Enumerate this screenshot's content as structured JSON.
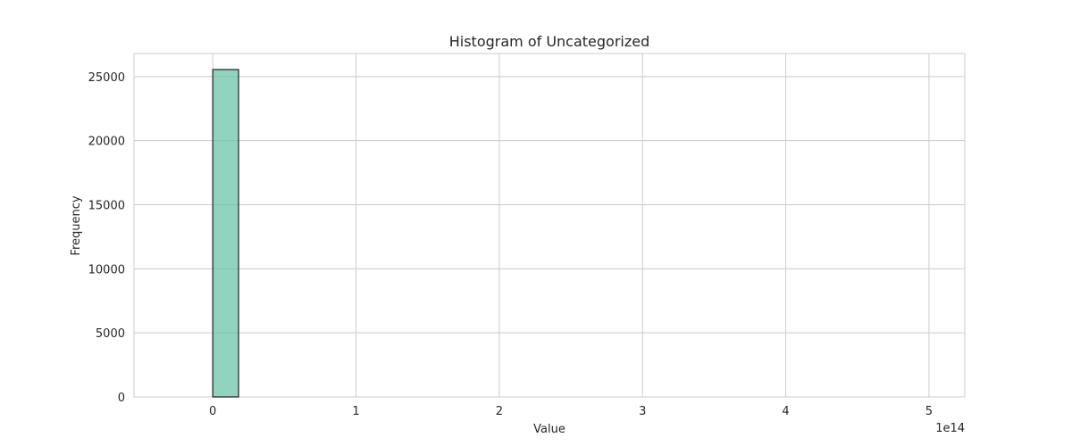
{
  "chart_data": {
    "type": "bar",
    "title": "Histogram of Uncategorized",
    "xlabel": "Value",
    "ylabel": "Frequency",
    "x_scale_label": "1e14",
    "xlim": [
      -0.55,
      5.25
    ],
    "ylim": [
      0,
      26800
    ],
    "x_ticks": [
      0,
      1,
      2,
      3,
      4,
      5
    ],
    "y_ticks": [
      0,
      5000,
      10000,
      15000,
      20000,
      25000
    ],
    "grid": true,
    "bar_color": "#66c2a5",
    "bar_edge_color": "#1f1f1f",
    "bins": [
      {
        "x0": 0.0,
        "x1": 0.18,
        "count": 25550
      },
      {
        "x0": 0.18,
        "x1": 5.14,
        "count": 0
      }
    ]
  }
}
